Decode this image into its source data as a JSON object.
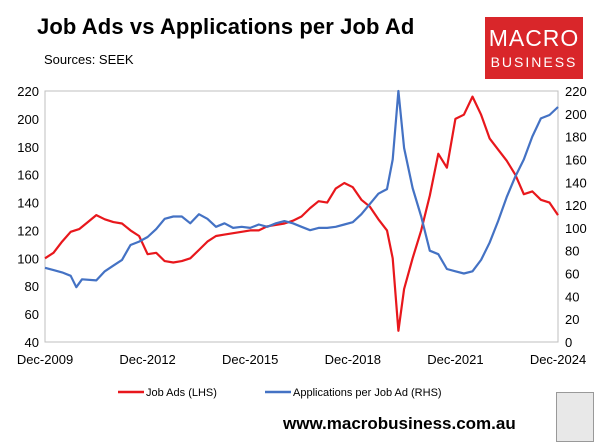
{
  "header": {
    "title": "Job Ads vs Applications per Job Ad",
    "subtitle": "Sources: SEEK"
  },
  "logo": {
    "line1": "MACRO",
    "line2": "BUSINESS"
  },
  "footer": {
    "url": "www.macrobusiness.com.au"
  },
  "colors": {
    "job_ads": "#e8171c",
    "applications": "#4472c4",
    "logo_bg": "#d9262a"
  },
  "chart_data": {
    "type": "line",
    "title": "Job Ads vs Applications per Job Ad",
    "x_tick_labels": [
      "Dec-2009",
      "Dec-2012",
      "Dec-2015",
      "Dec-2018",
      "Dec-2021",
      "Dec-2024"
    ],
    "x_range": [
      "2009-12",
      "2024-12"
    ],
    "y_left": {
      "ticks": [
        40,
        60,
        80,
        100,
        120,
        140,
        160,
        180,
        200,
        220
      ],
      "lim": [
        40,
        220
      ]
    },
    "y_right": {
      "ticks": [
        0,
        20,
        40,
        60,
        80,
        100,
        120,
        140,
        160,
        180,
        200,
        220
      ],
      "lim": [
        0,
        220
      ]
    },
    "grid": false,
    "legend_position": "bottom",
    "series": [
      {
        "name": "Job Ads (LHS)",
        "axis": "left",
        "points": [
          [
            "2009-12",
            100
          ],
          [
            "2010-03",
            104
          ],
          [
            "2010-06",
            112
          ],
          [
            "2010-09",
            119
          ],
          [
            "2010-12",
            121
          ],
          [
            "2011-03",
            126
          ],
          [
            "2011-06",
            131
          ],
          [
            "2011-09",
            128
          ],
          [
            "2011-12",
            126
          ],
          [
            "2012-03",
            125
          ],
          [
            "2012-06",
            120
          ],
          [
            "2012-09",
            116
          ],
          [
            "2012-12",
            103
          ],
          [
            "2013-03",
            104
          ],
          [
            "2013-06",
            98
          ],
          [
            "2013-09",
            97
          ],
          [
            "2013-12",
            98
          ],
          [
            "2014-03",
            100
          ],
          [
            "2014-06",
            106
          ],
          [
            "2014-09",
            112
          ],
          [
            "2014-12",
            116
          ],
          [
            "2015-03",
            117
          ],
          [
            "2015-06",
            118
          ],
          [
            "2015-09",
            119
          ],
          [
            "2015-12",
            120
          ],
          [
            "2016-03",
            120
          ],
          [
            "2016-06",
            123
          ],
          [
            "2016-09",
            124
          ],
          [
            "2016-12",
            125
          ],
          [
            "2017-03",
            127
          ],
          [
            "2017-06",
            130
          ],
          [
            "2017-09",
            136
          ],
          [
            "2017-12",
            141
          ],
          [
            "2018-03",
            140
          ],
          [
            "2018-06",
            150
          ],
          [
            "2018-09",
            154
          ],
          [
            "2018-12",
            151
          ],
          [
            "2019-03",
            142
          ],
          [
            "2019-06",
            137
          ],
          [
            "2019-09",
            128
          ],
          [
            "2019-12",
            120
          ],
          [
            "2020-02",
            100
          ],
          [
            "2020-04",
            48
          ],
          [
            "2020-06",
            78
          ],
          [
            "2020-09",
            100
          ],
          [
            "2020-12",
            120
          ],
          [
            "2021-03",
            145
          ],
          [
            "2021-06",
            175
          ],
          [
            "2021-09",
            165
          ],
          [
            "2021-12",
            200
          ],
          [
            "2022-03",
            203
          ],
          [
            "2022-06",
            216
          ],
          [
            "2022-09",
            203
          ],
          [
            "2022-12",
            186
          ],
          [
            "2023-03",
            178
          ],
          [
            "2023-06",
            170
          ],
          [
            "2023-09",
            160
          ],
          [
            "2023-12",
            146
          ],
          [
            "2024-03",
            148
          ],
          [
            "2024-06",
            142
          ],
          [
            "2024-09",
            140
          ],
          [
            "2024-12",
            131
          ]
        ]
      },
      {
        "name": "Applications per Job Ad (RHS)",
        "axis": "right",
        "points": [
          [
            "2009-12",
            65
          ],
          [
            "2010-03",
            63
          ],
          [
            "2010-06",
            61
          ],
          [
            "2010-09",
            58
          ],
          [
            "2010-11",
            48
          ],
          [
            "2011-01",
            55
          ],
          [
            "2011-06",
            54
          ],
          [
            "2011-09",
            62
          ],
          [
            "2011-12",
            67
          ],
          [
            "2012-03",
            72
          ],
          [
            "2012-06",
            85
          ],
          [
            "2012-09",
            88
          ],
          [
            "2012-12",
            92
          ],
          [
            "2013-03",
            99
          ],
          [
            "2013-06",
            108
          ],
          [
            "2013-09",
            110
          ],
          [
            "2013-12",
            110
          ],
          [
            "2014-03",
            104
          ],
          [
            "2014-06",
            112
          ],
          [
            "2014-09",
            108
          ],
          [
            "2014-12",
            101
          ],
          [
            "2015-03",
            104
          ],
          [
            "2015-06",
            100
          ],
          [
            "2015-09",
            101
          ],
          [
            "2015-12",
            100
          ],
          [
            "2016-03",
            103
          ],
          [
            "2016-06",
            101
          ],
          [
            "2016-09",
            104
          ],
          [
            "2016-12",
            106
          ],
          [
            "2017-03",
            104
          ],
          [
            "2017-06",
            101
          ],
          [
            "2017-09",
            98
          ],
          [
            "2017-12",
            100
          ],
          [
            "2018-03",
            100
          ],
          [
            "2018-06",
            101
          ],
          [
            "2018-09",
            103
          ],
          [
            "2018-12",
            105
          ],
          [
            "2019-03",
            112
          ],
          [
            "2019-06",
            121
          ],
          [
            "2019-09",
            130
          ],
          [
            "2019-12",
            134
          ],
          [
            "2020-02",
            160
          ],
          [
            "2020-04",
            220
          ],
          [
            "2020-06",
            170
          ],
          [
            "2020-09",
            135
          ],
          [
            "2020-12",
            110
          ],
          [
            "2021-03",
            80
          ],
          [
            "2021-06",
            77
          ],
          [
            "2021-09",
            64
          ],
          [
            "2021-12",
            62
          ],
          [
            "2022-03",
            60
          ],
          [
            "2022-06",
            62
          ],
          [
            "2022-09",
            72
          ],
          [
            "2022-12",
            87
          ],
          [
            "2023-03",
            106
          ],
          [
            "2023-06",
            127
          ],
          [
            "2023-09",
            145
          ],
          [
            "2023-12",
            160
          ],
          [
            "2024-03",
            180
          ],
          [
            "2024-06",
            196
          ],
          [
            "2024-09",
            199
          ],
          [
            "2024-12",
            206
          ]
        ]
      }
    ]
  }
}
